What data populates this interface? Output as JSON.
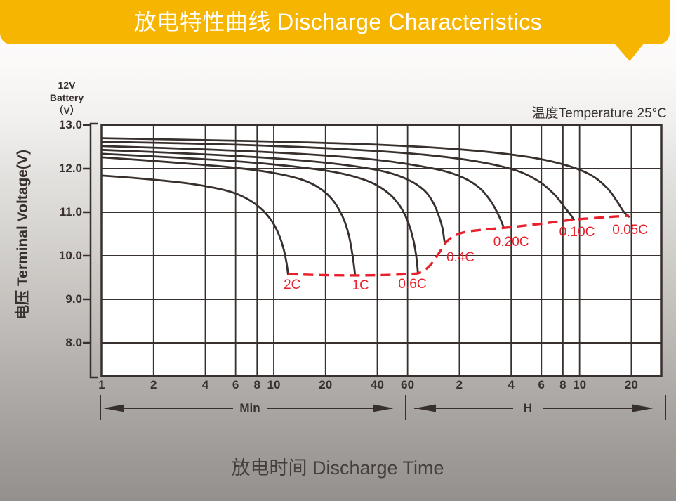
{
  "banner": {
    "title": "放电特性曲线 Discharge Characteristics",
    "color": "#f6b500"
  },
  "labels": {
    "battery_lines": [
      "12V",
      "Battery",
      "（V）"
    ],
    "temperature": "温度Temperature 25°C",
    "y_axis_title": "电压 Terminal Voltage(V)",
    "x_axis_title": "放电时间 Discharge Time",
    "unit_minutes": "Min",
    "unit_hours": "H"
  },
  "colors": {
    "banner_yellow": "#f6b500",
    "curve_dark": "#38302d",
    "cutoff_red": "#e8202c",
    "plot_background": "#ffffff"
  },
  "chart_data": {
    "type": "line",
    "title": "放电特性曲线 Discharge Characteristics",
    "subtitle": "温度Temperature 25°C",
    "xlabel": "放电时间 Discharge Time",
    "ylabel": "电压 Terminal Voltage(V)",
    "x_axis": {
      "scale": "log",
      "unit_left_segment": "Min",
      "unit_right_segment": "H",
      "ticks_minutes": [
        1,
        2,
        4,
        6,
        8,
        10,
        20,
        40,
        60
      ],
      "ticks_hours": [
        2,
        4,
        6,
        8,
        10,
        20
      ],
      "range_minutes": [
        1,
        1790
      ]
    },
    "y_axis": {
      "ticks": [
        13.0,
        12.0,
        11.0,
        10.0,
        9.0,
        8.0
      ],
      "top_value": 13.0,
      "unit": "V",
      "grid": true
    },
    "series": [
      {
        "name": "0.05C",
        "label_at": [
          1180,
          10.58
        ],
        "points": [
          [
            1,
            12.7
          ],
          [
            8,
            12.63
          ],
          [
            40,
            12.55
          ],
          [
            130,
            12.43
          ],
          [
            300,
            12.27
          ],
          [
            500,
            12.08
          ],
          [
            700,
            11.85
          ],
          [
            870,
            11.55
          ],
          [
            990,
            11.25
          ],
          [
            1080,
            11.02
          ],
          [
            1160,
            10.9
          ]
        ]
      },
      {
        "name": "0.10C",
        "label_at": [
          580,
          10.53
        ],
        "points": [
          [
            1,
            12.62
          ],
          [
            6,
            12.55
          ],
          [
            25,
            12.45
          ],
          [
            75,
            12.32
          ],
          [
            160,
            12.15
          ],
          [
            260,
            11.95
          ],
          [
            350,
            11.7
          ],
          [
            430,
            11.4
          ],
          [
            490,
            11.12
          ],
          [
            530,
            10.95
          ],
          [
            555,
            10.83
          ]
        ]
      },
      {
        "name": "0.20C",
        "label_at": [
          240,
          10.3
        ],
        "points": [
          [
            1,
            12.52
          ],
          [
            4,
            12.44
          ],
          [
            14,
            12.34
          ],
          [
            40,
            12.2
          ],
          [
            85,
            12.0
          ],
          [
            125,
            11.8
          ],
          [
            158,
            11.55
          ],
          [
            183,
            11.25
          ],
          [
            200,
            10.98
          ],
          [
            210,
            10.8
          ],
          [
            217,
            10.65
          ]
        ]
      },
      {
        "name": "0.4C",
        "label_at": [
          122,
          9.95
        ],
        "points": [
          [
            1,
            12.43
          ],
          [
            3,
            12.35
          ],
          [
            9,
            12.25
          ],
          [
            22,
            12.12
          ],
          [
            42,
            11.95
          ],
          [
            60,
            11.75
          ],
          [
            75,
            11.5
          ],
          [
            85,
            11.2
          ],
          [
            91.5,
            10.9
          ],
          [
            95.5,
            10.65
          ],
          [
            98.3,
            10.33
          ]
        ]
      },
      {
        "name": "0.6C",
        "label_at": [
          64,
          9.34
        ],
        "points": [
          [
            1,
            12.34
          ],
          [
            2.5,
            12.26
          ],
          [
            6,
            12.17
          ],
          [
            13,
            12.05
          ],
          [
            24,
            11.9
          ],
          [
            36,
            11.7
          ],
          [
            46,
            11.45
          ],
          [
            54,
            11.15
          ],
          [
            60,
            10.8
          ],
          [
            64.5,
            10.4
          ],
          [
            67,
            10.05
          ],
          [
            68.3,
            9.78
          ],
          [
            68.9,
            9.6
          ]
        ]
      },
      {
        "name": "1C",
        "label_at": [
          32,
          9.3
        ],
        "points": [
          [
            1,
            12.26
          ],
          [
            1.8,
            12.19
          ],
          [
            3.3,
            12.11
          ],
          [
            6,
            12.02
          ],
          [
            10,
            11.9
          ],
          [
            14.5,
            11.75
          ],
          [
            18.5,
            11.55
          ],
          [
            22,
            11.28
          ],
          [
            25,
            10.92
          ],
          [
            27.2,
            10.5
          ],
          [
            28.6,
            10.05
          ],
          [
            29.3,
            9.75
          ],
          [
            29.7,
            9.55
          ]
        ]
      },
      {
        "name": "2C",
        "label_at": [
          12.8,
          9.33
        ],
        "points": [
          [
            1,
            11.84
          ],
          [
            1.5,
            11.79
          ],
          [
            2.2,
            11.73
          ],
          [
            3.2,
            11.66
          ],
          [
            4.5,
            11.56
          ],
          [
            5.8,
            11.45
          ],
          [
            7.2,
            11.28
          ],
          [
            8.6,
            11.05
          ],
          [
            9.8,
            10.78
          ],
          [
            10.8,
            10.45
          ],
          [
            11.5,
            10.1
          ],
          [
            11.9,
            9.8
          ],
          [
            12.1,
            9.58
          ]
        ]
      }
    ],
    "cutoff_line": {
      "name": "end-of-discharge-voltage",
      "style": "dashed",
      "color": "#e8202c",
      "points": [
        [
          12.1,
          9.58
        ],
        [
          18,
          9.56
        ],
        [
          29.7,
          9.55
        ],
        [
          45,
          9.56
        ],
        [
          60,
          9.58
        ],
        [
          68.9,
          9.6
        ],
        [
          76,
          9.68
        ],
        [
          84,
          9.85
        ],
        [
          92,
          10.08
        ],
        [
          100,
          10.3
        ],
        [
          110,
          10.44
        ],
        [
          128,
          10.54
        ],
        [
          165,
          10.6
        ],
        [
          217,
          10.64
        ],
        [
          300,
          10.7
        ],
        [
          420,
          10.77
        ],
        [
          555,
          10.83
        ],
        [
          750,
          10.87
        ],
        [
          950,
          10.9
        ],
        [
          1160,
          10.92
        ]
      ]
    },
    "legend_position": "none",
    "grid": true
  }
}
